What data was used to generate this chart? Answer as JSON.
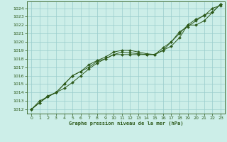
{
  "title": "Graphe pression niveau de la mer (hPa)",
  "background_color": "#cceee8",
  "grid_color": "#99cccc",
  "line_color": "#2d5a1b",
  "xlim": [
    -0.5,
    23.5
  ],
  "ylim": [
    1011.5,
    1024.8
  ],
  "xticks": [
    0,
    1,
    2,
    3,
    4,
    5,
    6,
    7,
    8,
    9,
    10,
    11,
    12,
    13,
    14,
    15,
    16,
    17,
    18,
    19,
    20,
    21,
    22,
    23
  ],
  "yticks": [
    1012,
    1013,
    1014,
    1015,
    1016,
    1017,
    1018,
    1019,
    1020,
    1021,
    1022,
    1023,
    1024
  ],
  "series1_x": [
    0,
    1,
    2,
    3,
    4,
    5,
    6,
    7,
    8,
    9,
    10,
    11,
    12,
    13,
    14,
    15,
    16,
    17,
    18,
    19,
    20,
    21,
    22,
    23
  ],
  "series1_y": [
    1012.0,
    1012.8,
    1013.6,
    1014.0,
    1014.5,
    1015.2,
    1016.0,
    1016.8,
    1017.5,
    1018.0,
    1018.5,
    1018.8,
    1018.7,
    1018.6,
    1018.5,
    1018.5,
    1019.0,
    1020.0,
    1021.0,
    1022.0,
    1022.7,
    1023.1,
    1024.0,
    1024.3
  ],
  "series2_x": [
    0,
    1,
    2,
    3,
    4,
    5,
    6,
    7,
    8,
    9,
    10,
    11,
    12,
    13,
    14,
    15,
    16,
    17,
    18,
    19,
    20,
    21,
    22,
    23
  ],
  "series2_y": [
    1012.0,
    1012.8,
    1013.5,
    1014.0,
    1015.0,
    1016.0,
    1016.5,
    1017.3,
    1017.8,
    1018.2,
    1018.8,
    1019.0,
    1019.0,
    1018.8,
    1018.6,
    1018.5,
    1019.3,
    1020.0,
    1021.2,
    1021.8,
    1022.5,
    1023.2,
    1023.5,
    1024.5
  ],
  "series3_x": [
    0,
    1,
    2,
    3,
    4,
    5,
    6,
    7,
    8,
    9,
    10,
    11,
    12,
    13,
    14,
    15,
    16,
    17,
    18,
    19,
    20,
    21,
    22,
    23
  ],
  "series3_y": [
    1012.0,
    1013.0,
    1013.5,
    1014.0,
    1015.0,
    1016.0,
    1016.5,
    1017.0,
    1017.7,
    1018.0,
    1018.5,
    1018.5,
    1018.5,
    1018.5,
    1018.5,
    1018.5,
    1019.0,
    1019.5,
    1020.5,
    1022.0,
    1022.0,
    1022.5,
    1023.5,
    1024.5
  ]
}
